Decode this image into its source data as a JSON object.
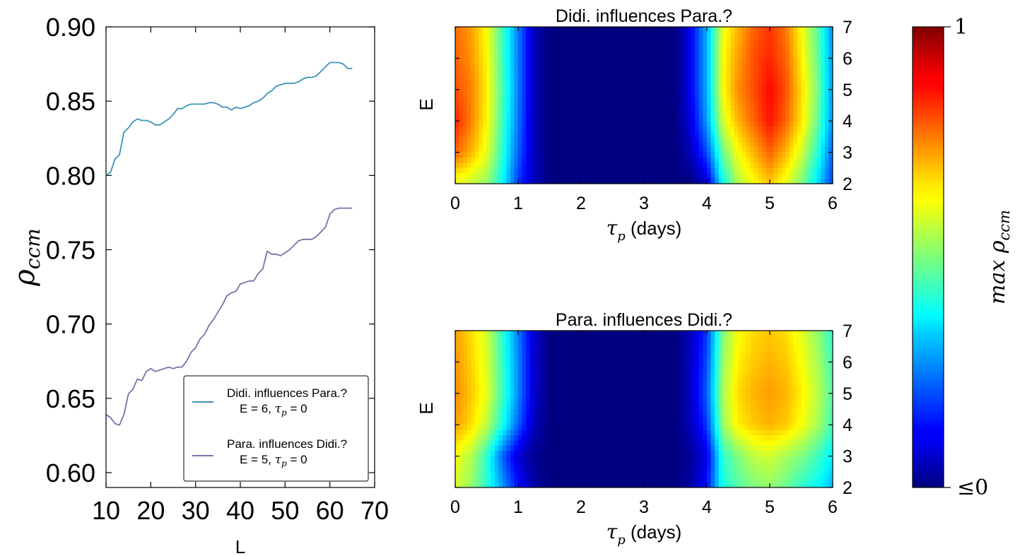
{
  "colors": {
    "series1": "#3a93b8",
    "series2": "#7d6ea8",
    "colormap": "jet"
  },
  "chart_data": [
    {
      "type": "line",
      "xlabel": "L",
      "ylabel": "ρccm",
      "xlim": [
        10,
        70
      ],
      "ylim": [
        0.59,
        0.9
      ],
      "xticks": [
        "10",
        "20",
        "30",
        "40",
        "50",
        "60",
        "70"
      ],
      "yticks": [
        "0.60",
        "0.65",
        "0.70",
        "0.75",
        "0.80",
        "0.85",
        "0.90"
      ],
      "legend_position": "lower-right",
      "series": [
        {
          "name": "Didi. influences Para.?",
          "param_line": "E = 6, τp = 0",
          "color": "#3a93b8",
          "x": [
            10,
            11,
            12,
            13,
            14,
            15,
            16,
            17,
            18,
            19,
            20,
            21,
            22,
            23,
            24,
            25,
            26,
            27,
            28,
            29,
            30,
            31,
            32,
            33,
            34,
            35,
            36,
            37,
            38,
            39,
            40,
            41,
            42,
            43,
            44,
            45,
            46,
            47,
            48,
            49,
            50,
            51,
            52,
            53,
            54,
            55,
            56,
            57,
            58,
            59,
            60,
            61,
            62,
            63,
            64,
            65
          ],
          "values": [
            0.8,
            0.802,
            0.811,
            0.814,
            0.829,
            0.832,
            0.836,
            0.838,
            0.837,
            0.837,
            0.836,
            0.834,
            0.834,
            0.836,
            0.838,
            0.841,
            0.845,
            0.845,
            0.847,
            0.848,
            0.848,
            0.848,
            0.848,
            0.849,
            0.849,
            0.848,
            0.846,
            0.846,
            0.844,
            0.846,
            0.845,
            0.846,
            0.847,
            0.849,
            0.85,
            0.852,
            0.855,
            0.857,
            0.86,
            0.861,
            0.862,
            0.862,
            0.862,
            0.863,
            0.865,
            0.866,
            0.866,
            0.867,
            0.87,
            0.873,
            0.876,
            0.876,
            0.876,
            0.875,
            0.872,
            0.872
          ]
        },
        {
          "name": "Para. influences Didi.?",
          "param_line": "E = 5, τp = 0",
          "color": "#7d6ea8",
          "x": [
            10,
            11,
            12,
            13,
            14,
            15,
            16,
            17,
            18,
            19,
            20,
            21,
            22,
            23,
            24,
            25,
            26,
            27,
            28,
            29,
            30,
            31,
            32,
            33,
            34,
            35,
            36,
            37,
            38,
            39,
            40,
            41,
            42,
            43,
            44,
            45,
            46,
            47,
            48,
            49,
            50,
            51,
            52,
            53,
            54,
            55,
            56,
            57,
            58,
            59,
            60,
            61,
            62,
            63,
            64,
            65
          ],
          "values": [
            0.639,
            0.637,
            0.633,
            0.632,
            0.639,
            0.653,
            0.656,
            0.663,
            0.662,
            0.668,
            0.67,
            0.668,
            0.669,
            0.67,
            0.671,
            0.67,
            0.671,
            0.671,
            0.675,
            0.681,
            0.684,
            0.69,
            0.693,
            0.699,
            0.703,
            0.708,
            0.713,
            0.719,
            0.721,
            0.722,
            0.727,
            0.728,
            0.729,
            0.729,
            0.734,
            0.737,
            0.749,
            0.747,
            0.747,
            0.746,
            0.748,
            0.75,
            0.753,
            0.756,
            0.757,
            0.757,
            0.757,
            0.759,
            0.762,
            0.765,
            0.774,
            0.777,
            0.778,
            0.778,
            0.778,
            0.778
          ]
        }
      ]
    },
    {
      "type": "heatmap",
      "title": "Didi. influences Para.?",
      "xlabel": "τp (days)",
      "ylabel": "E",
      "xlim": [
        0,
        6
      ],
      "ylim": [
        2,
        7
      ],
      "xticks": [
        "0",
        "1",
        "2",
        "3",
        "4",
        "5",
        "6"
      ],
      "yticks": [
        "2",
        "3",
        "4",
        "5",
        "6",
        "7"
      ],
      "x": [
        0,
        0.25,
        0.5,
        0.75,
        1,
        1.25,
        1.5,
        2,
        2.5,
        3,
        3.5,
        3.75,
        4,
        4.25,
        4.5,
        4.75,
        5,
        5.25,
        5.5,
        5.75,
        6
      ],
      "y": [
        2,
        3,
        4,
        5,
        6,
        7
      ],
      "z": [
        [
          0.6,
          0.57,
          0.52,
          0.38,
          0.18,
          0.06,
          0.0,
          0.0,
          0.0,
          0.0,
          0.0,
          0.0,
          0.08,
          0.38,
          0.55,
          0.62,
          0.68,
          0.6,
          0.5,
          0.35,
          0.18
        ],
        [
          0.78,
          0.7,
          0.6,
          0.42,
          0.22,
          0.06,
          0.0,
          0.0,
          0.0,
          0.0,
          0.0,
          0.06,
          0.2,
          0.48,
          0.62,
          0.7,
          0.78,
          0.7,
          0.58,
          0.42,
          0.22
        ],
        [
          0.84,
          0.75,
          0.63,
          0.44,
          0.24,
          0.06,
          0.0,
          0.0,
          0.0,
          0.0,
          0.0,
          0.1,
          0.28,
          0.58,
          0.7,
          0.78,
          0.86,
          0.78,
          0.65,
          0.48,
          0.26
        ],
        [
          0.8,
          0.75,
          0.64,
          0.45,
          0.25,
          0.06,
          0.0,
          0.0,
          0.0,
          0.0,
          0.0,
          0.12,
          0.3,
          0.62,
          0.74,
          0.8,
          0.87,
          0.8,
          0.66,
          0.5,
          0.27
        ],
        [
          0.78,
          0.73,
          0.63,
          0.44,
          0.25,
          0.06,
          0.0,
          0.0,
          0.0,
          0.0,
          0.0,
          0.12,
          0.3,
          0.62,
          0.72,
          0.8,
          0.84,
          0.78,
          0.64,
          0.48,
          0.27
        ],
        [
          0.77,
          0.72,
          0.62,
          0.44,
          0.25,
          0.06,
          0.0,
          0.0,
          0.0,
          0.0,
          0.0,
          0.12,
          0.3,
          0.6,
          0.7,
          0.78,
          0.82,
          0.76,
          0.62,
          0.47,
          0.26
        ]
      ]
    },
    {
      "type": "heatmap",
      "title": "Para. influences Didi.?",
      "xlabel": "τp (days)",
      "ylabel": "E",
      "xlim": [
        0,
        6
      ],
      "ylim": [
        2,
        7
      ],
      "xticks": [
        "0",
        "1",
        "2",
        "3",
        "4",
        "5",
        "6"
      ],
      "yticks": [
        "2",
        "3",
        "4",
        "5",
        "6",
        "7"
      ],
      "x": [
        0,
        0.25,
        0.5,
        0.75,
        1,
        1.25,
        1.5,
        2,
        2.5,
        3,
        3.5,
        3.75,
        4,
        4.25,
        4.5,
        4.75,
        5,
        5.25,
        5.5,
        5.75,
        6
      ],
      "y": [
        2,
        3,
        4,
        5,
        6,
        7
      ],
      "z": [
        [
          0.58,
          0.52,
          0.42,
          0.28,
          0.14,
          0.04,
          0.0,
          0.0,
          0.0,
          0.0,
          0.0,
          0.04,
          0.14,
          0.4,
          0.46,
          0.5,
          0.52,
          0.48,
          0.42,
          0.38,
          0.3
        ],
        [
          0.62,
          0.55,
          0.42,
          0.22,
          0.08,
          0.02,
          0.0,
          0.0,
          0.0,
          0.0,
          0.0,
          0.03,
          0.1,
          0.42,
          0.5,
          0.56,
          0.58,
          0.54,
          0.5,
          0.44,
          0.36
        ],
        [
          0.72,
          0.66,
          0.56,
          0.4,
          0.22,
          0.06,
          0.0,
          0.0,
          0.0,
          0.0,
          0.0,
          0.06,
          0.18,
          0.52,
          0.64,
          0.68,
          0.7,
          0.68,
          0.62,
          0.54,
          0.44
        ],
        [
          0.74,
          0.68,
          0.6,
          0.44,
          0.26,
          0.08,
          0.0,
          0.0,
          0.0,
          0.0,
          0.0,
          0.07,
          0.22,
          0.54,
          0.66,
          0.7,
          0.72,
          0.7,
          0.64,
          0.56,
          0.46
        ],
        [
          0.73,
          0.67,
          0.59,
          0.43,
          0.26,
          0.08,
          0.0,
          0.0,
          0.0,
          0.0,
          0.0,
          0.07,
          0.2,
          0.52,
          0.64,
          0.68,
          0.7,
          0.68,
          0.62,
          0.54,
          0.44
        ],
        [
          0.72,
          0.66,
          0.58,
          0.42,
          0.25,
          0.08,
          0.0,
          0.0,
          0.0,
          0.0,
          0.0,
          0.06,
          0.18,
          0.5,
          0.62,
          0.66,
          0.68,
          0.66,
          0.6,
          0.52,
          0.42
        ]
      ]
    }
  ],
  "colorbar": {
    "label": "max ρccm",
    "max_label": "1",
    "min_label": "≤0",
    "range": [
      0,
      1
    ],
    "colormap": "jet"
  }
}
